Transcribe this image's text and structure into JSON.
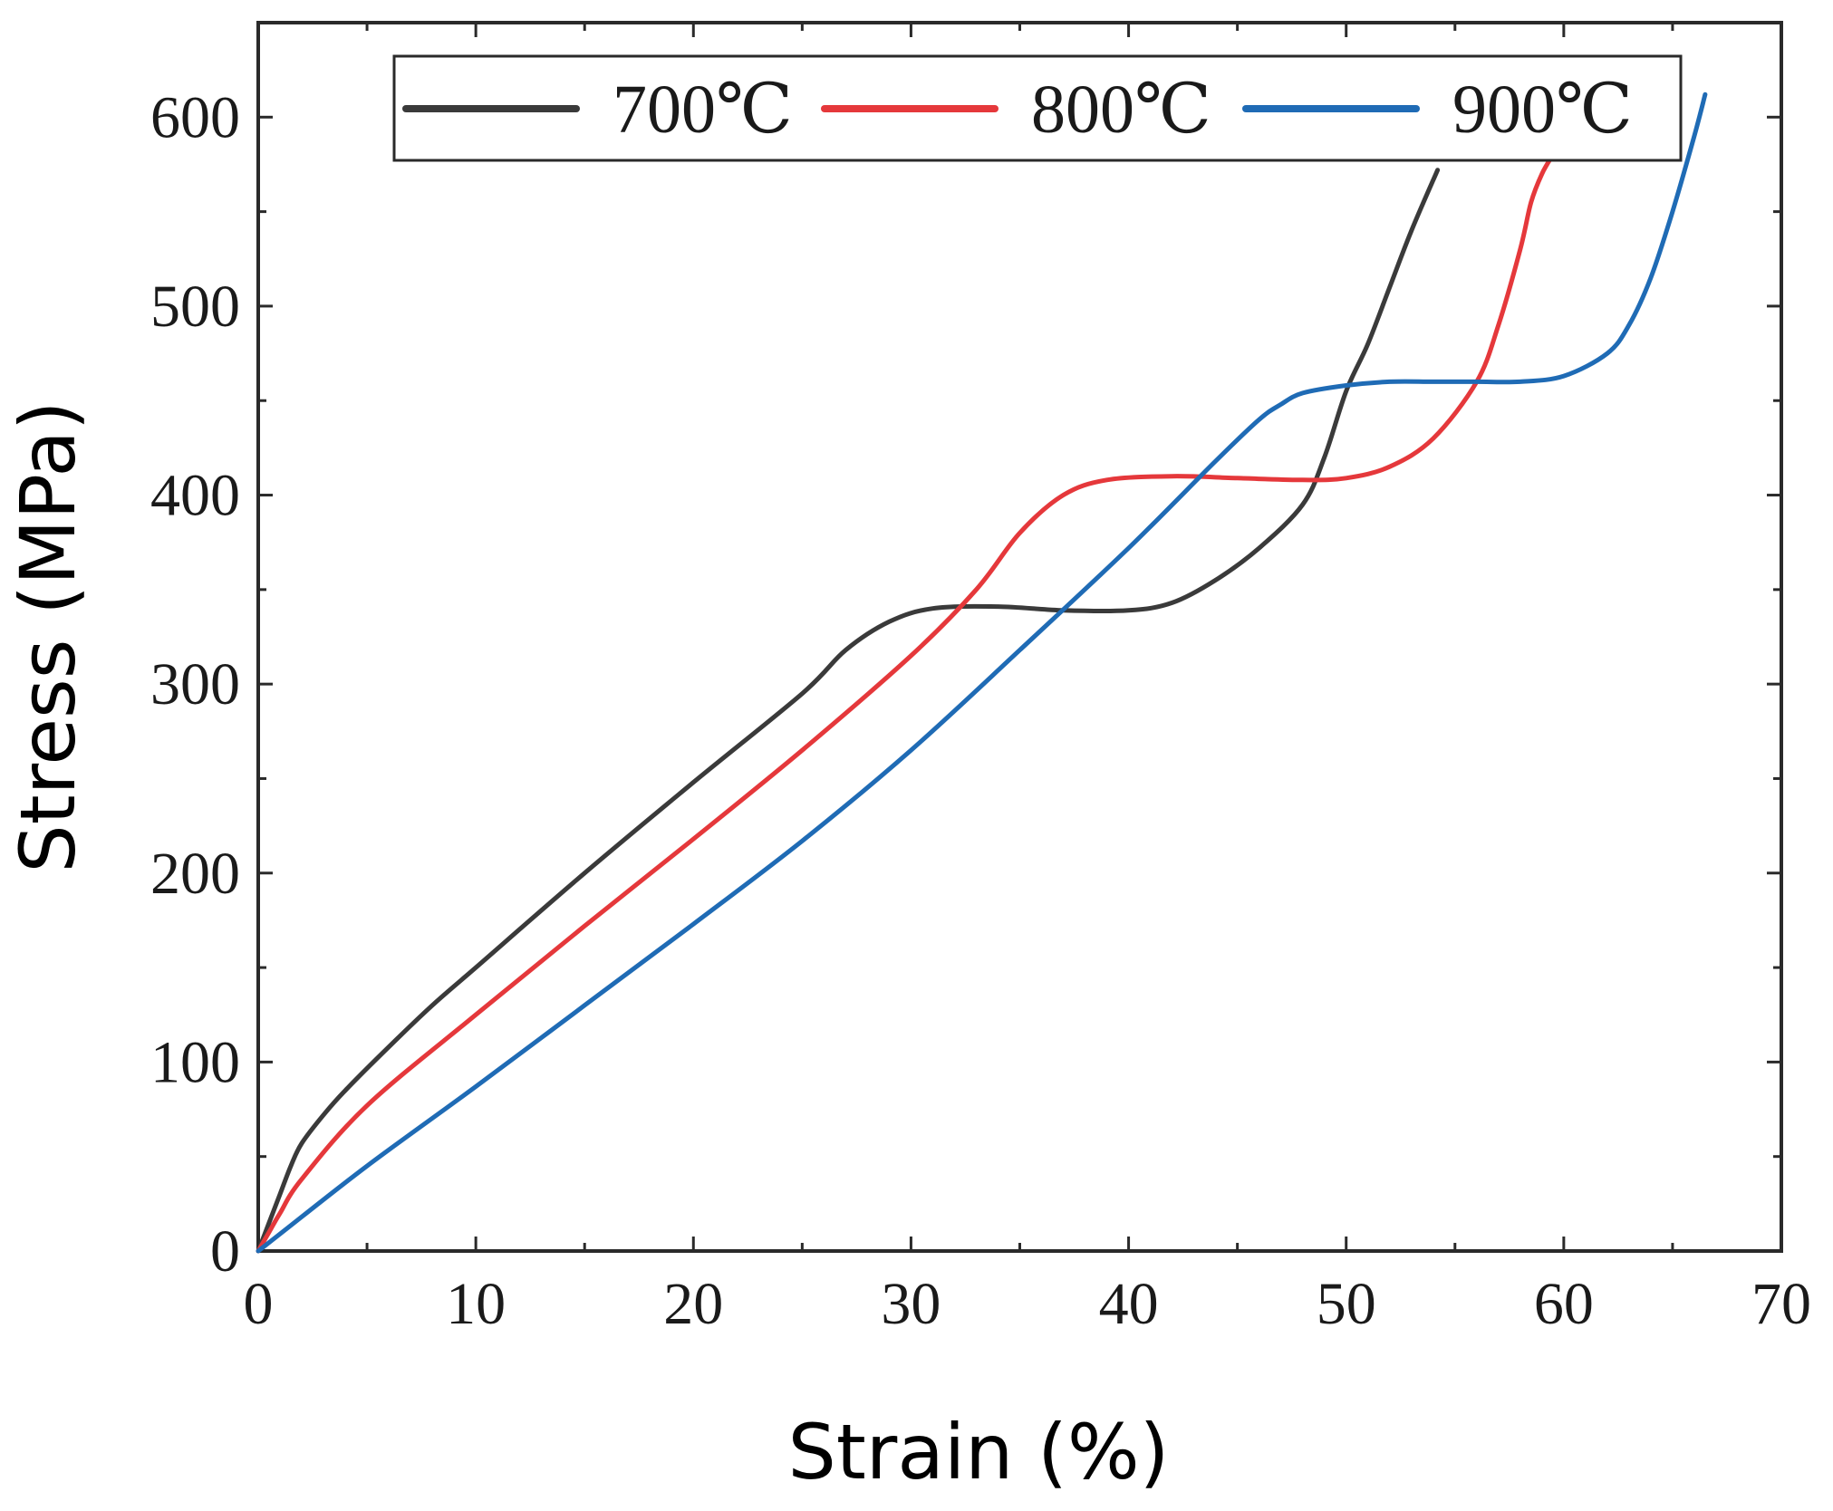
{
  "chart_data": {
    "type": "line",
    "title": "",
    "xlabel": "Strain (%)",
    "ylabel": "Stress (MPa)",
    "xlim": [
      0,
      70
    ],
    "ylim": [
      0,
      650
    ],
    "xticks": [
      0,
      10,
      20,
      30,
      40,
      50,
      60,
      70
    ],
    "yticks": [
      0,
      100,
      200,
      300,
      400,
      500,
      600
    ],
    "x_minor_step": 5,
    "y_minor_step": 50,
    "grid": false,
    "legend": {
      "placement": "top",
      "orientation": "horizontal"
    },
    "series": [
      {
        "name": "700℃",
        "color": "#3a3a3a",
        "x": [
          0,
          0.5,
          1,
          1.5,
          2,
          3,
          4,
          6,
          8,
          10,
          15,
          20,
          25,
          27,
          29,
          31,
          34,
          37,
          40,
          42,
          44,
          46,
          48,
          49,
          50,
          51,
          52,
          53,
          54.2
        ],
        "y": [
          0,
          15,
          30,
          45,
          57,
          72,
          85,
          108,
          130,
          150,
          200,
          248,
          295,
          318,
          333,
          340,
          341,
          339,
          339,
          343,
          355,
          372,
          395,
          420,
          455,
          480,
          510,
          540,
          572
        ]
      },
      {
        "name": "800℃",
        "color": "#e5383b",
        "x": [
          0,
          0.5,
          1,
          2,
          5,
          10,
          15,
          20,
          25,
          30,
          33,
          35,
          37,
          39,
          42,
          45,
          48,
          50,
          52,
          54,
          56,
          57,
          58,
          58.5,
          59,
          59.5
        ],
        "y": [
          0,
          10,
          20,
          38,
          77,
          125,
          172,
          218,
          265,
          315,
          350,
          380,
          400,
          408,
          410,
          409,
          408,
          409,
          415,
          430,
          460,
          490,
          530,
          555,
          570,
          580
        ]
      },
      {
        "name": "900℃",
        "color": "#1f6bb5",
        "x": [
          0,
          1,
          5,
          10,
          15,
          20,
          25,
          30,
          35,
          40,
          44,
          46,
          47,
          48,
          50,
          52,
          54,
          56,
          58,
          60,
          62,
          63,
          64,
          65,
          66,
          66.5
        ],
        "y": [
          0,
          9,
          45,
          87,
          130,
          173,
          217,
          265,
          318,
          372,
          418,
          440,
          448,
          454,
          458,
          460,
          460,
          460,
          460,
          463,
          475,
          490,
          515,
          550,
          590,
          612
        ]
      }
    ]
  }
}
